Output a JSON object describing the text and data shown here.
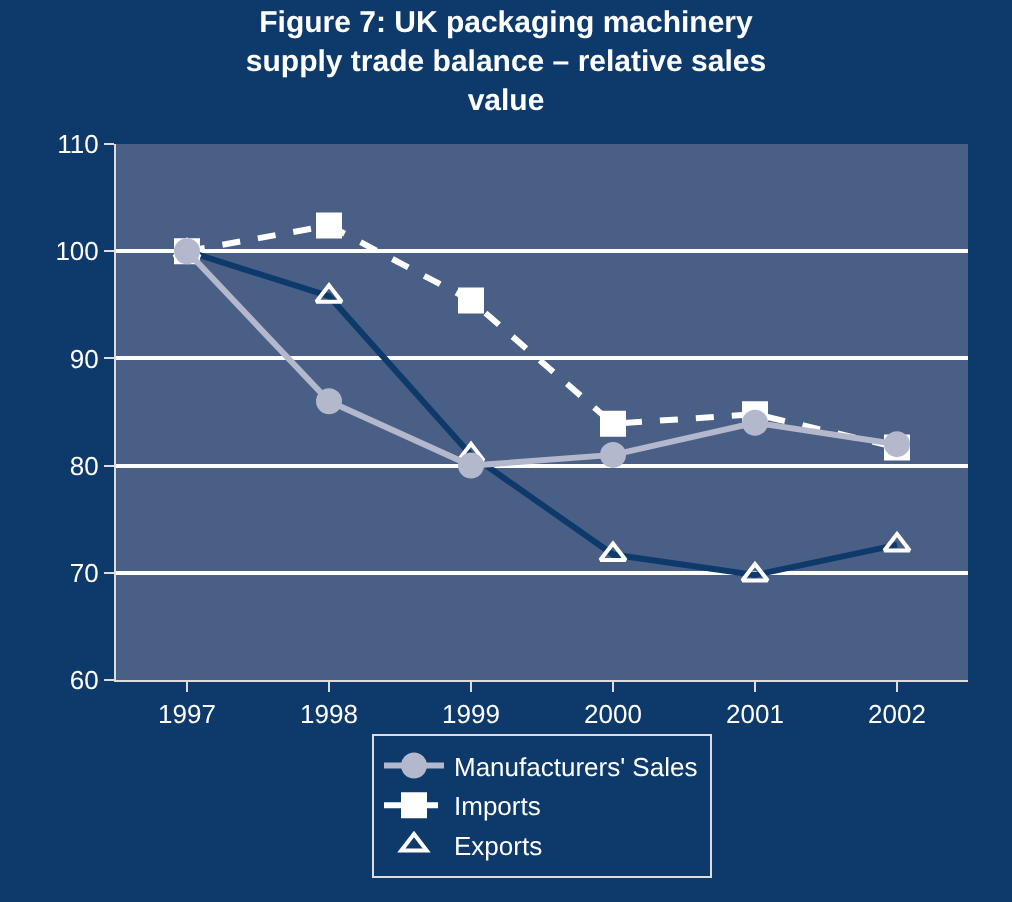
{
  "chart_data": {
    "type": "line",
    "title": "Figure 7: UK packaging machinery supply trade balance – relative sales value",
    "categories": [
      "1997",
      "1998",
      "1999",
      "2000",
      "2001",
      "2002"
    ],
    "series": [
      {
        "name": "Manufacturers' Sales",
        "color": "#b4b8cc",
        "marker": "circle",
        "line_style": "solid",
        "values": [
          100,
          86,
          80,
          81,
          84,
          82
        ]
      },
      {
        "name": "Imports",
        "color": "#ffffff",
        "marker": "square",
        "line_style": "dashed",
        "values": [
          100,
          102.4,
          95.4,
          83.9,
          84.8,
          81.7
        ]
      },
      {
        "name": "Exports",
        "color": "#0d3a6a",
        "marker": "triangle",
        "line_style": "solid",
        "values": [
          100,
          95.8,
          81,
          71.7,
          69.8,
          72.6
        ]
      }
    ],
    "ylim": [
      60,
      110
    ],
    "yticks": [
      60,
      70,
      80,
      90,
      100,
      110
    ],
    "grid": "y",
    "legend": "bottom"
  }
}
